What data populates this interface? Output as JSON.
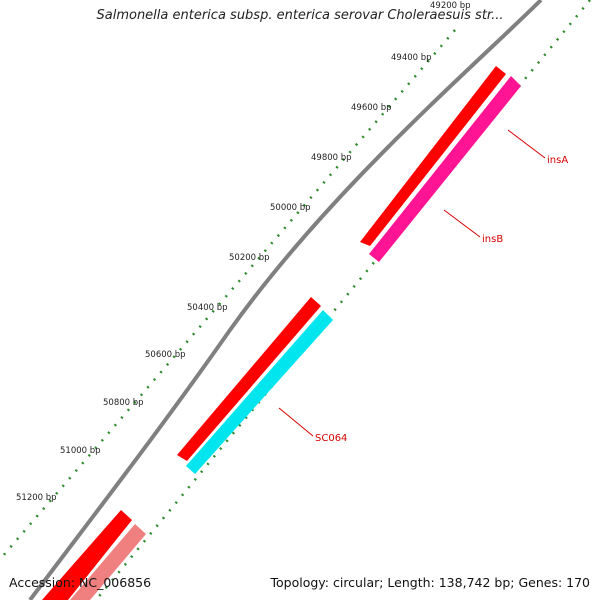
{
  "title": "Salmonella enterica subsp. enterica serovar Choleraesuis str...",
  "footer": {
    "accession": "Accession: NC_006856",
    "summary": "Topology: circular; Length: 138,742 bp; Genes: 170"
  },
  "ticks": [
    {
      "label": "49200 bp"
    },
    {
      "label": "49400 bp"
    },
    {
      "label": "49600 bp"
    },
    {
      "label": "49800 bp"
    },
    {
      "label": "50000 bp"
    },
    {
      "label": "50200 bp"
    },
    {
      "label": "50400 bp"
    },
    {
      "label": "50600 bp"
    },
    {
      "label": "50800 bp"
    },
    {
      "label": "51000 bp"
    },
    {
      "label": "51200 bp"
    }
  ],
  "genes": [
    {
      "label": "insA",
      "color": "#ff1493"
    },
    {
      "label": "insB",
      "color": "#ff1493"
    },
    {
      "label": "SC064",
      "color": "#00e5ee"
    }
  ],
  "colors": {
    "backbone": "#808080",
    "cds": "#ff0000",
    "cds_faded": "#f08080",
    "tick_marks": "#2e8b2e",
    "label": "#d40000"
  }
}
